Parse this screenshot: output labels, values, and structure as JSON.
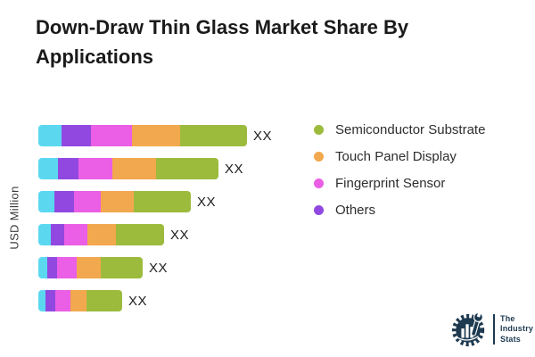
{
  "title": "Down-Draw Thin Glass Market Share By Applications",
  "y_axis_label": "USD Million",
  "legend": [
    {
      "label": "Semiconductor Substrate",
      "color": "#9cbb3d"
    },
    {
      "label": "Touch Panel Display",
      "color": "#f2a84e"
    },
    {
      "label": "Fingerprint Sensor",
      "color": "#ea5fe5"
    },
    {
      "label": "Others",
      "color": "#9148e0"
    }
  ],
  "chart_data": {
    "type": "bar",
    "orientation": "horizontal",
    "stacked": true,
    "title": "Down-Draw Thin Glass Market Share By Applications",
    "ylabel": "USD Million",
    "num_bars": 6,
    "value_labels": [
      "XX",
      "XX",
      "XX",
      "XX",
      "XX",
      "XX"
    ],
    "legend_position": "right",
    "grid": false,
    "series": [
      {
        "name": "",
        "color": "#5bd8f0",
        "values": [
          26,
          22,
          18,
          14,
          10,
          8
        ]
      },
      {
        "name": "Others",
        "color": "#9148e0",
        "values": [
          33,
          23,
          22,
          15,
          11,
          11
        ]
      },
      {
        "name": "Fingerprint Sensor",
        "color": "#ea5fe5",
        "values": [
          46,
          38,
          30,
          26,
          22,
          17
        ]
      },
      {
        "name": "Touch Panel Display",
        "color": "#f2a84e",
        "values": [
          54,
          49,
          37,
          32,
          27,
          18
        ]
      },
      {
        "name": "Semiconductor Substrate",
        "color": "#9cbb3d",
        "values": [
          75,
          70,
          64,
          54,
          47,
          40
        ]
      }
    ],
    "units": "relative width (px), actual values masked as XX"
  },
  "logo": {
    "line1": "The",
    "line2": "Industry",
    "line3": "Stats"
  }
}
